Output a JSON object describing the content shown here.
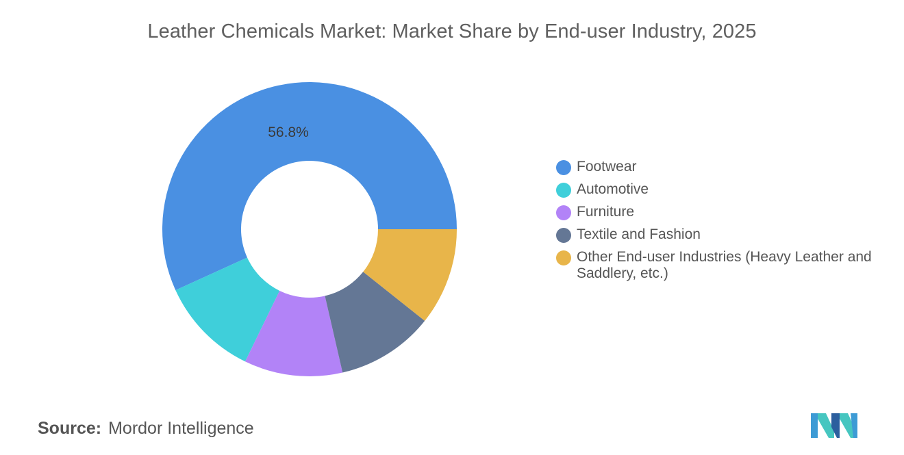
{
  "chart_data": {
    "type": "pie",
    "title": "Leather Chemicals Market: Market Share by End-user Industry, 2025",
    "categories": [
      "Footwear",
      "Automotive",
      "Furniture",
      "Textile and Fashion",
      "Other End-user Industries (Heavy Leather and Saddlery, etc.)"
    ],
    "values": [
      56.8,
      11.0,
      10.8,
      10.7,
      10.7
    ],
    "colors": [
      "#4a90e2",
      "#3fcfda",
      "#b283f7",
      "#647795",
      "#e8b54a"
    ],
    "data_labels": [
      {
        "category": "Footwear",
        "text": "56.8%"
      }
    ],
    "donut": true,
    "legend_position": "right"
  },
  "source": {
    "label": "Source:",
    "value": "Mordor Intelligence"
  },
  "logo": {
    "icon": "mordor-intelligence-logo-icon",
    "colors": [
      "#3d9bd5",
      "#46c6c0",
      "#2c5f9e"
    ]
  }
}
